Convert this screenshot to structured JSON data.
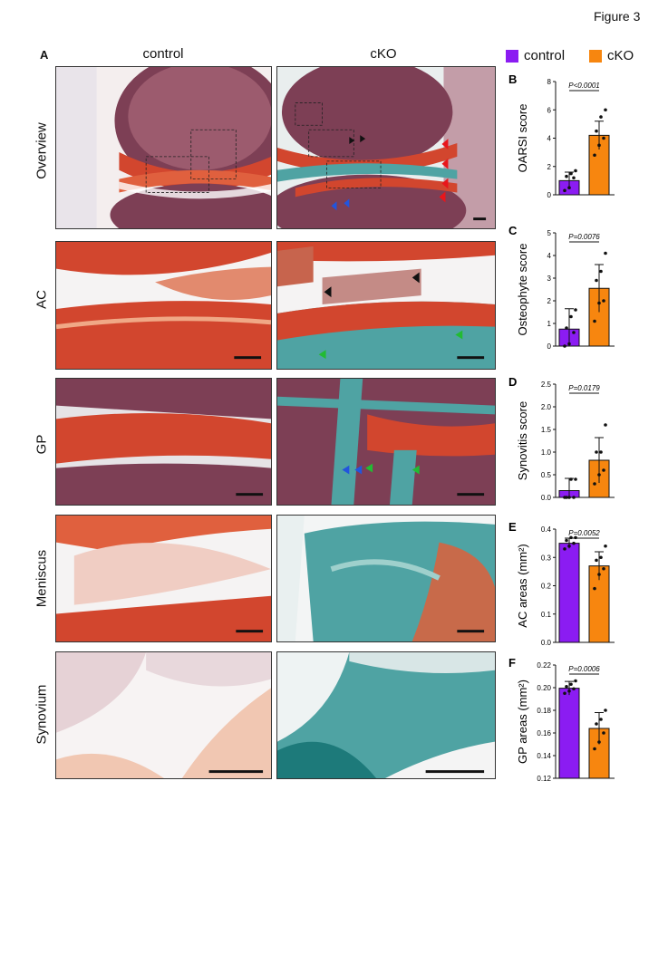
{
  "figure_title": "Figure 3",
  "panel_a": {
    "letter": "A",
    "columns": [
      "control",
      "cKO"
    ],
    "rows": [
      "Overview",
      "AC",
      "GP",
      "Meniscus",
      "Synovium"
    ]
  },
  "legend": {
    "items": [
      {
        "label": "control",
        "color": "#8B1CF2"
      },
      {
        "label": "cKO",
        "color": "#F7860F"
      }
    ]
  },
  "colors": {
    "control": "#8B1CF2",
    "cKO": "#F7860F",
    "safranin": "#d2462e",
    "fastgreen": "#4fa3a3"
  },
  "chart_data": [
    {
      "letter": "B",
      "type": "bar",
      "categories": [
        "control",
        "cKO"
      ],
      "values": [
        1.0,
        4.2
      ],
      "errors": [
        0.6,
        1.0
      ],
      "points": [
        [
          0.3,
          0.5,
          1.2,
          1.3,
          1.5,
          1.7
        ],
        [
          2.8,
          3.5,
          4.0,
          4.5,
          5.5,
          6.0
        ]
      ],
      "ylabel": "OARSI score",
      "ylim": [
        0,
        8
      ],
      "yticks": [
        "0",
        "2",
        "4",
        "6",
        "8"
      ],
      "p_value": "P<0.0001"
    },
    {
      "letter": "C",
      "type": "bar",
      "categories": [
        "control",
        "cKO"
      ],
      "values": [
        0.75,
        2.55
      ],
      "errors": [
        0.9,
        1.05
      ],
      "points": [
        [
          0.0,
          0.1,
          0.6,
          0.8,
          1.3,
          1.6
        ],
        [
          1.1,
          1.9,
          2.0,
          2.9,
          3.3,
          4.1
        ]
      ],
      "ylabel": "Osteophyte score",
      "ylim": [
        0,
        5
      ],
      "yticks": [
        "0",
        "1",
        "2",
        "3",
        "4",
        "5"
      ],
      "p_value": "P=0.0076"
    },
    {
      "letter": "D",
      "type": "bar",
      "categories": [
        "control",
        "cKO"
      ],
      "values": [
        0.15,
        0.82
      ],
      "errors": [
        0.27,
        0.5
      ],
      "points": [
        [
          0.0,
          0.0,
          0.0,
          0.0,
          0.4,
          0.4
        ],
        [
          0.3,
          0.5,
          0.6,
          1.0,
          1.0,
          1.6
        ]
      ],
      "ylabel": "Synovitis score",
      "ylim": [
        0,
        2.5
      ],
      "yticks": [
        "0.0",
        "0.5",
        "1.0",
        "1.5",
        "2.0",
        "2.5"
      ],
      "p_value": "P=0.0179"
    },
    {
      "letter": "E",
      "type": "bar",
      "categories": [
        "control",
        "cKO"
      ],
      "values": [
        0.35,
        0.27
      ],
      "errors": [
        0.018,
        0.05
      ],
      "points": [
        [
          0.33,
          0.34,
          0.35,
          0.36,
          0.37,
          0.37
        ],
        [
          0.19,
          0.24,
          0.26,
          0.29,
          0.3,
          0.34
        ]
      ],
      "ylabel": "AC areas (mm²)",
      "ylim": [
        0,
        0.4
      ],
      "yticks": [
        "0.0",
        "0.1",
        "0.2",
        "0.3",
        "0.4"
      ],
      "p_value": "P=0.0052"
    },
    {
      "letter": "F",
      "type": "bar",
      "categories": [
        "control",
        "cKO"
      ],
      "values": [
        0.1995,
        0.164
      ],
      "errors": [
        0.006,
        0.014
      ],
      "points": [
        [
          0.195,
          0.197,
          0.199,
          0.201,
          0.203,
          0.206
        ],
        [
          0.146,
          0.152,
          0.16,
          0.168,
          0.172,
          0.18
        ]
      ],
      "ylabel": "GP areas (mm²)",
      "ylim": [
        0.12,
        0.22
      ],
      "yticks": [
        "0.12",
        "0.14",
        "0.16",
        "0.18",
        "0.20",
        "0.22"
      ],
      "p_value": "P=0.0006"
    }
  ]
}
